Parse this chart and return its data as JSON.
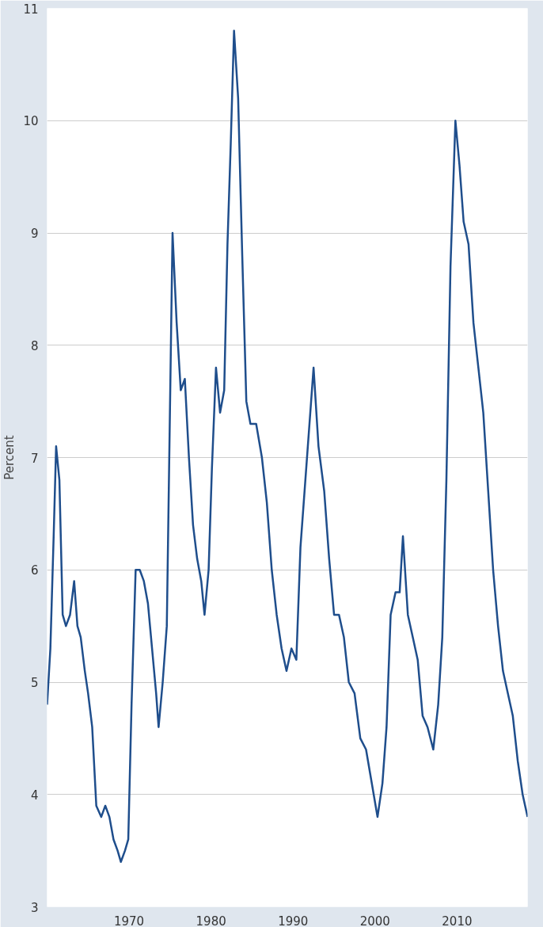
{
  "chart_data": {
    "type": "line",
    "ylabel": "Percent",
    "grid": "y",
    "line_style": "solid",
    "marker": "none",
    "xlim": [
      1960,
      2018.6
    ],
    "ylim": [
      3,
      11
    ],
    "xticks": [
      1970,
      1980,
      1990,
      2000,
      2010
    ],
    "yticks": [
      3,
      4,
      5,
      6,
      7,
      8,
      9,
      10,
      11
    ],
    "series": [
      {
        "color": "#1f4e8c",
        "x": [
          1960.0,
          1960.4,
          1960.8,
          1961.1,
          1961.5,
          1961.9,
          1962.3,
          1962.8,
          1963.3,
          1963.7,
          1964.1,
          1964.6,
          1965.0,
          1965.5,
          1966.0,
          1966.6,
          1967.1,
          1967.6,
          1968.1,
          1968.6,
          1969.0,
          1969.5,
          1969.9,
          1970.3,
          1970.8,
          1971.3,
          1971.8,
          1972.3,
          1972.8,
          1973.3,
          1973.6,
          1974.1,
          1974.6,
          1975.0,
          1975.3,
          1975.8,
          1976.3,
          1976.8,
          1977.3,
          1977.8,
          1978.3,
          1978.8,
          1979.2,
          1979.7,
          1980.1,
          1980.6,
          1981.1,
          1981.6,
          1982.0,
          1982.4,
          1982.8,
          1983.3,
          1983.8,
          1984.3,
          1984.8,
          1985.5,
          1986.2,
          1986.8,
          1987.4,
          1988.0,
          1988.6,
          1989.2,
          1989.8,
          1990.4,
          1990.9,
          1991.5,
          1992.0,
          1992.5,
          1993.1,
          1993.8,
          1994.4,
          1995.0,
          1995.6,
          1996.2,
          1996.8,
          1997.5,
          1998.2,
          1998.9,
          1999.6,
          2000.3,
          2000.9,
          2001.4,
          2001.9,
          2002.5,
          2003.0,
          2003.4,
          2004.0,
          2004.6,
          2005.2,
          2005.8,
          2006.4,
          2007.1,
          2007.7,
          2008.2,
          2008.7,
          2009.2,
          2009.8,
          2010.3,
          2010.8,
          2011.4,
          2012.0,
          2012.6,
          2013.2,
          2013.8,
          2014.4,
          2015.0,
          2015.6,
          2016.2,
          2016.8,
          2017.4,
          2018.0,
          2018.6
        ],
        "values": [
          4.8,
          5.3,
          6.3,
          7.1,
          6.8,
          5.6,
          5.5,
          5.6,
          5.9,
          5.5,
          5.4,
          5.1,
          4.9,
          4.6,
          3.9,
          3.8,
          3.9,
          3.8,
          3.6,
          3.5,
          3.4,
          3.5,
          3.6,
          4.8,
          6.0,
          6.0,
          5.9,
          5.7,
          5.3,
          4.9,
          4.6,
          5.0,
          5.5,
          7.5,
          9.0,
          8.2,
          7.6,
          7.7,
          7.0,
          6.4,
          6.1,
          5.9,
          5.6,
          6.0,
          6.9,
          7.8,
          7.4,
          7.6,
          8.9,
          9.8,
          10.8,
          10.2,
          8.8,
          7.5,
          7.3,
          7.3,
          7.0,
          6.6,
          6.0,
          5.6,
          5.3,
          5.1,
          5.3,
          5.2,
          6.2,
          6.8,
          7.3,
          7.8,
          7.1,
          6.7,
          6.1,
          5.6,
          5.6,
          5.4,
          5.0,
          4.9,
          4.5,
          4.4,
          4.1,
          3.8,
          4.1,
          4.6,
          5.6,
          5.8,
          5.8,
          6.3,
          5.6,
          5.4,
          5.2,
          4.7,
          4.6,
          4.4,
          4.8,
          5.4,
          6.8,
          8.7,
          10.0,
          9.6,
          9.1,
          8.9,
          8.2,
          7.8,
          7.4,
          6.7,
          6.0,
          5.5,
          5.1,
          4.9,
          4.7,
          4.3,
          4.0,
          3.8
        ]
      }
    ]
  }
}
